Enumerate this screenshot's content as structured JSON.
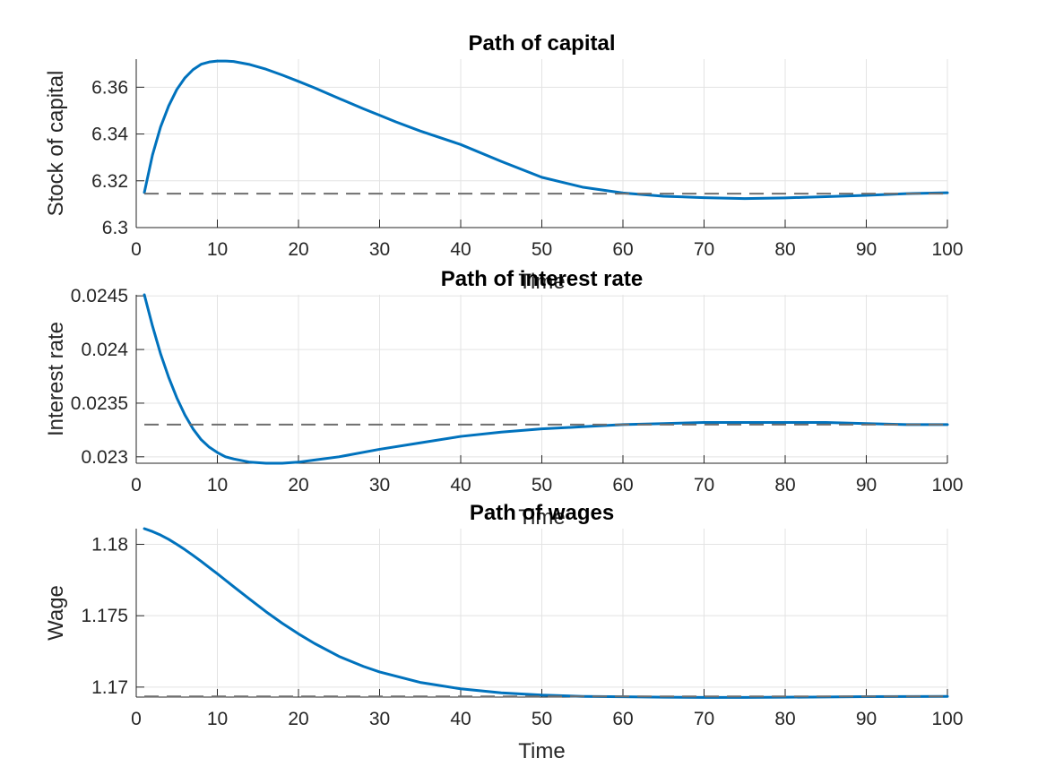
{
  "colors": {
    "series": "#0072BD",
    "reference": "#6E6E6E"
  },
  "chart_data": [
    {
      "type": "line",
      "title": "Path of capital",
      "xlabel": "Time",
      "ylabel": "Stock of capital",
      "xlim": [
        0,
        100
      ],
      "ylim": [
        6.3,
        6.372
      ],
      "xticks": [
        0,
        10,
        20,
        30,
        40,
        50,
        60,
        70,
        80,
        90,
        100
      ],
      "xtick_labels": [
        "0",
        "10",
        "20",
        "30",
        "40",
        "50",
        "60",
        "70",
        "80",
        "90",
        "100"
      ],
      "yticks": [
        6.3,
        6.32,
        6.34,
        6.36
      ],
      "ytick_labels": [
        "6.3",
        "6.32",
        "6.34",
        "6.36"
      ],
      "grid": true,
      "series": [
        {
          "style": "solid",
          "x": [
            1,
            2,
            3,
            4,
            5,
            6,
            7,
            8,
            9,
            10,
            11,
            12,
            14,
            16,
            18,
            20,
            22,
            25,
            28,
            30,
            32,
            35,
            40,
            45,
            50,
            55,
            60,
            65,
            70,
            75,
            80,
            85,
            90,
            95,
            100
          ],
          "y": [
            6.315,
            6.331,
            6.343,
            6.352,
            6.359,
            6.364,
            6.3675,
            6.3698,
            6.3708,
            6.3712,
            6.3712,
            6.371,
            6.3697,
            6.3677,
            6.3652,
            6.3625,
            6.3597,
            6.3552,
            6.3508,
            6.348,
            6.3452,
            6.3413,
            6.3355,
            6.3283,
            6.3215,
            6.3173,
            6.3148,
            6.3134,
            6.3128,
            6.3124,
            6.3127,
            6.3132,
            6.3138,
            6.3145,
            6.3149
          ]
        },
        {
          "style": "dashed",
          "x": [
            1,
            100
          ],
          "y": [
            6.3145,
            6.3145
          ]
        }
      ]
    },
    {
      "type": "line",
      "title": "Path of interest rate",
      "xlabel": "Time",
      "ylabel": "Interest rate",
      "xlim": [
        0,
        100
      ],
      "ylim": [
        0.02294,
        0.02451
      ],
      "xticks": [
        0,
        10,
        20,
        30,
        40,
        50,
        60,
        70,
        80,
        90,
        100
      ],
      "xtick_labels": [
        "0",
        "10",
        "20",
        "30",
        "40",
        "50",
        "60",
        "70",
        "80",
        "90",
        "100"
      ],
      "yticks": [
        0.023,
        0.0235,
        0.024,
        0.0245
      ],
      "ytick_labels": [
        "0.023",
        "0.0235",
        "0.024",
        "0.0245"
      ],
      "grid": true,
      "series": [
        {
          "style": "solid",
          "x": [
            1,
            2,
            3,
            4,
            5,
            6,
            7,
            8,
            9,
            10,
            11,
            12,
            14,
            16,
            17,
            18,
            20,
            22,
            25,
            30,
            35,
            40,
            45,
            50,
            55,
            60,
            65,
            70,
            75,
            80,
            85,
            90,
            95,
            100
          ],
          "y": [
            0.02451,
            0.02422,
            0.02396,
            0.02374,
            0.02355,
            0.02339,
            0.02326,
            0.02316,
            0.02309,
            0.02304,
            0.023,
            0.02298,
            0.02295,
            0.02294,
            0.02294,
            0.02294,
            0.02295,
            0.02297,
            0.023,
            0.02307,
            0.02313,
            0.02319,
            0.02323,
            0.02326,
            0.02328,
            0.0233,
            0.02331,
            0.02332,
            0.02332,
            0.02332,
            0.02332,
            0.02331,
            0.0233,
            0.0233
          ]
        },
        {
          "style": "dashed",
          "x": [
            1,
            100
          ],
          "y": [
            0.0233,
            0.0233
          ]
        }
      ]
    },
    {
      "type": "line",
      "title": "Path of wages",
      "xlabel": "Time",
      "ylabel": "Wage",
      "xlim": [
        0,
        100
      ],
      "ylim": [
        1.1693,
        1.1811
      ],
      "xticks": [
        0,
        10,
        20,
        30,
        40,
        50,
        60,
        70,
        80,
        90,
        100
      ],
      "xtick_labels": [
        "0",
        "10",
        "20",
        "30",
        "40",
        "50",
        "60",
        "70",
        "80",
        "90",
        "100"
      ],
      "yticks": [
        1.17,
        1.175,
        1.18
      ],
      "ytick_labels": [
        "1.17",
        "1.175",
        "1.18"
      ],
      "grid": true,
      "series": [
        {
          "style": "solid",
          "x": [
            1,
            2,
            3,
            4,
            5,
            6,
            7,
            8,
            9,
            10,
            12,
            14,
            16,
            18,
            20,
            22,
            25,
            28,
            30,
            35,
            40,
            45,
            50,
            55,
            60,
            65,
            70,
            75,
            80,
            85,
            90,
            95,
            100
          ],
          "y": [
            1.1811,
            1.1809,
            1.18065,
            1.18035,
            1.18,
            1.17963,
            1.17923,
            1.17881,
            1.17837,
            1.17794,
            1.17704,
            1.17615,
            1.17528,
            1.17447,
            1.17373,
            1.17305,
            1.17215,
            1.17145,
            1.17106,
            1.17033,
            1.16988,
            1.1696,
            1.16944,
            1.16935,
            1.16932,
            1.16929,
            1.16928,
            1.16928,
            1.16929,
            1.16931,
            1.16933,
            1.16934,
            1.16935
          ]
        },
        {
          "style": "dashed",
          "x": [
            1,
            100
          ],
          "y": [
            1.16935,
            1.16935
          ]
        }
      ]
    }
  ]
}
